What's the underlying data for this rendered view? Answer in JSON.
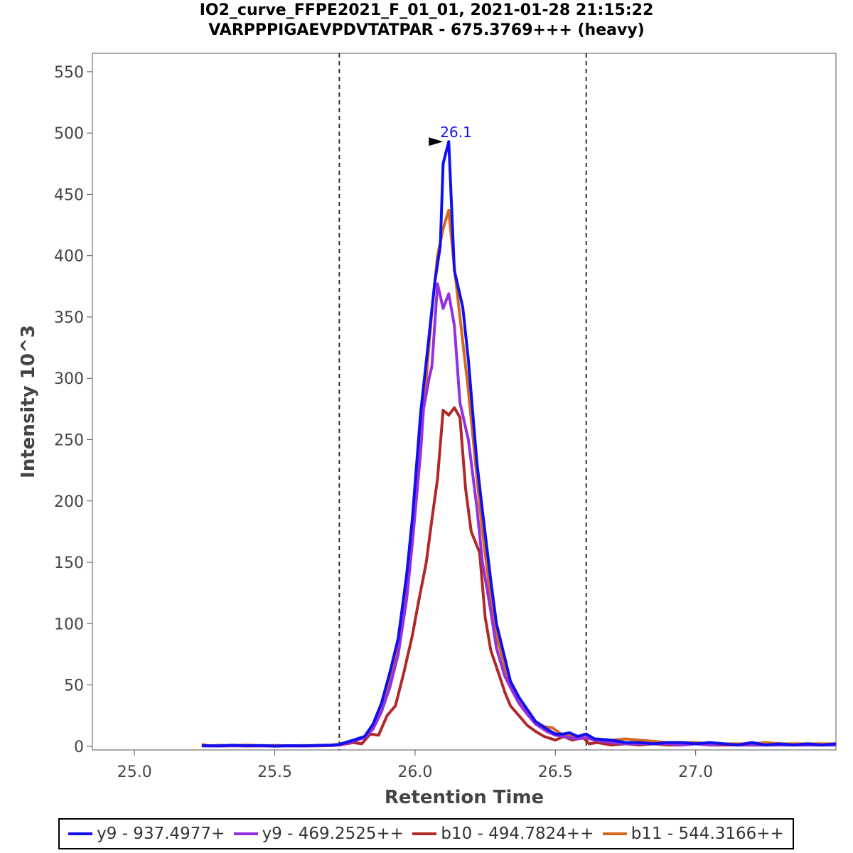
{
  "chart_data": {
    "type": "line",
    "title": "IO2_curve_FFPE2021_F_01_01, 2021-01-28 21:15:22",
    "subtitle": "VARPPPIGAEVPDVTATPAR - 675.3769+++ (heavy)",
    "xlabel": "Retention Time",
    "ylabel": "Intensity 10^3",
    "xlim": [
      24.85,
      27.5
    ],
    "ylim": [
      -3,
      565
    ],
    "xticks": [
      "25.0",
      "25.5",
      "26.0",
      "26.5",
      "27.0"
    ],
    "yticks": [
      "0",
      "50",
      "100",
      "150",
      "200",
      "250",
      "300",
      "350",
      "400",
      "450",
      "500",
      "550"
    ],
    "integration_bounds": [
      25.73,
      26.61
    ],
    "peak_annotation": {
      "label": "26.1",
      "x": 26.12,
      "y": 493
    },
    "series": [
      {
        "name": "y9 - 937.4977+",
        "color": "#1010ee",
        "points": [
          [
            25.24,
            0.5
          ],
          [
            25.3,
            0.3
          ],
          [
            25.35,
            0.8
          ],
          [
            25.4,
            0.4
          ],
          [
            25.45,
            0.6
          ],
          [
            25.5,
            0.2
          ],
          [
            25.55,
            0.5
          ],
          [
            25.6,
            0.3
          ],
          [
            25.65,
            0.7
          ],
          [
            25.7,
            0.9
          ],
          [
            25.73,
            1.5
          ],
          [
            25.78,
            5
          ],
          [
            25.82,
            8
          ],
          [
            25.85,
            18
          ],
          [
            25.88,
            35
          ],
          [
            25.91,
            60
          ],
          [
            25.94,
            88
          ],
          [
            25.97,
            140
          ],
          [
            25.99,
            185
          ],
          [
            26.02,
            272
          ],
          [
            26.05,
            335
          ],
          [
            26.07,
            378
          ],
          [
            26.09,
            408
          ],
          [
            26.1,
            475
          ],
          [
            26.12,
            493
          ],
          [
            26.14,
            388
          ],
          [
            26.17,
            358
          ],
          [
            26.19,
            315
          ],
          [
            26.22,
            232
          ],
          [
            26.24,
            192
          ],
          [
            26.27,
            135
          ],
          [
            26.29,
            100
          ],
          [
            26.32,
            72
          ],
          [
            26.34,
            53
          ],
          [
            26.37,
            40
          ],
          [
            26.4,
            30
          ],
          [
            26.43,
            20
          ],
          [
            26.47,
            14
          ],
          [
            26.5,
            10
          ],
          [
            26.53,
            10
          ],
          [
            26.55,
            11
          ],
          [
            26.58,
            8
          ],
          [
            26.61,
            10
          ],
          [
            26.64,
            6
          ],
          [
            26.7,
            5
          ],
          [
            26.75,
            3
          ],
          [
            26.8,
            3
          ],
          [
            26.85,
            2
          ],
          [
            26.9,
            3
          ],
          [
            26.95,
            3
          ],
          [
            27.0,
            2
          ],
          [
            27.05,
            3
          ],
          [
            27.1,
            2
          ],
          [
            27.15,
            1
          ],
          [
            27.2,
            3
          ],
          [
            27.25,
            1
          ],
          [
            27.3,
            2
          ],
          [
            27.35,
            1
          ],
          [
            27.4,
            2
          ],
          [
            27.45,
            1
          ],
          [
            27.5,
            2
          ]
        ]
      },
      {
        "name": "y9 - 469.2525++",
        "color": "#9430e0",
        "points": [
          [
            25.24,
            0.4
          ],
          [
            25.3,
            0.2
          ],
          [
            25.35,
            0.5
          ],
          [
            25.4,
            0.3
          ],
          [
            25.45,
            0.4
          ],
          [
            25.5,
            0.2
          ],
          [
            25.55,
            0.4
          ],
          [
            25.6,
            0.2
          ],
          [
            25.65,
            0.4
          ],
          [
            25.7,
            0.6
          ],
          [
            25.73,
            1
          ],
          [
            25.78,
            4
          ],
          [
            25.82,
            7
          ],
          [
            25.85,
            14
          ],
          [
            25.88,
            28
          ],
          [
            25.91,
            48
          ],
          [
            25.94,
            75
          ],
          [
            25.97,
            120
          ],
          [
            25.99,
            165
          ],
          [
            26.02,
            240
          ],
          [
            26.03,
            275
          ],
          [
            26.05,
            300
          ],
          [
            26.06,
            310
          ],
          [
            26.08,
            377
          ],
          [
            26.1,
            357
          ],
          [
            26.12,
            369
          ],
          [
            26.14,
            343
          ],
          [
            26.16,
            280
          ],
          [
            26.19,
            250
          ],
          [
            26.22,
            195
          ],
          [
            26.24,
            150
          ],
          [
            26.27,
            110
          ],
          [
            26.29,
            80
          ],
          [
            26.32,
            57
          ],
          [
            26.34,
            48
          ],
          [
            26.37,
            35
          ],
          [
            26.4,
            26
          ],
          [
            26.43,
            18
          ],
          [
            26.47,
            12
          ],
          [
            26.5,
            9
          ],
          [
            26.53,
            8
          ],
          [
            26.55,
            7
          ],
          [
            26.58,
            6
          ],
          [
            26.61,
            7
          ],
          [
            26.64,
            5
          ],
          [
            26.7,
            3
          ],
          [
            26.75,
            2
          ],
          [
            26.8,
            2
          ],
          [
            26.85,
            2
          ],
          [
            26.9,
            2
          ],
          [
            26.95,
            1
          ],
          [
            27.0,
            2
          ],
          [
            27.05,
            1
          ],
          [
            27.1,
            2
          ],
          [
            27.15,
            1
          ],
          [
            27.2,
            1
          ],
          [
            27.25,
            1
          ],
          [
            27.3,
            1
          ],
          [
            27.35,
            1
          ],
          [
            27.4,
            1
          ],
          [
            27.45,
            1
          ],
          [
            27.5,
            1
          ]
        ]
      },
      {
        "name": "b10 - 494.7824++",
        "color": "#b02828",
        "points": [
          [
            25.24,
            0.3
          ],
          [
            25.3,
            0.2
          ],
          [
            25.35,
            0.4
          ],
          [
            25.4,
            0.2
          ],
          [
            25.45,
            0.3
          ],
          [
            25.5,
            0.1
          ],
          [
            25.55,
            0.3
          ],
          [
            25.6,
            0.2
          ],
          [
            25.65,
            0.3
          ],
          [
            25.7,
            0.5
          ],
          [
            25.73,
            1
          ],
          [
            25.78,
            3
          ],
          [
            25.81,
            2
          ],
          [
            25.84,
            10
          ],
          [
            25.87,
            9
          ],
          [
            25.9,
            25
          ],
          [
            25.93,
            33
          ],
          [
            25.96,
            60
          ],
          [
            25.99,
            90
          ],
          [
            26.01,
            115
          ],
          [
            26.04,
            150
          ],
          [
            26.06,
            185
          ],
          [
            26.08,
            218
          ],
          [
            26.1,
            274
          ],
          [
            26.12,
            270
          ],
          [
            26.14,
            276
          ],
          [
            26.16,
            268
          ],
          [
            26.18,
            210
          ],
          [
            26.2,
            175
          ],
          [
            26.23,
            158
          ],
          [
            26.25,
            105
          ],
          [
            26.27,
            78
          ],
          [
            26.3,
            58
          ],
          [
            26.32,
            44
          ],
          [
            26.34,
            33
          ],
          [
            26.37,
            25
          ],
          [
            26.4,
            17
          ],
          [
            26.43,
            12
          ],
          [
            26.46,
            8
          ],
          [
            26.5,
            5
          ],
          [
            26.53,
            8
          ],
          [
            26.56,
            5
          ],
          [
            26.6,
            7
          ],
          [
            26.62,
            2
          ],
          [
            26.65,
            3
          ],
          [
            26.7,
            1
          ],
          [
            26.75,
            2
          ],
          [
            26.8,
            1
          ],
          [
            26.85,
            2
          ],
          [
            26.9,
            1
          ],
          [
            26.95,
            1
          ],
          [
            27.0,
            2
          ],
          [
            27.05,
            1
          ],
          [
            27.1,
            1
          ],
          [
            27.15,
            1
          ],
          [
            27.2,
            1
          ],
          [
            27.25,
            1
          ],
          [
            27.3,
            1
          ],
          [
            27.35,
            1
          ],
          [
            27.4,
            1
          ],
          [
            27.45,
            1
          ],
          [
            27.5,
            1
          ]
        ]
      },
      {
        "name": "b11 - 544.3166++",
        "color": "#d4691e",
        "points": [
          [
            25.24,
            1.5
          ],
          [
            25.27,
            0.3
          ],
          [
            25.3,
            0.8
          ],
          [
            25.35,
            0.4
          ],
          [
            25.4,
            1
          ],
          [
            25.45,
            0.5
          ],
          [
            25.5,
            0.7
          ],
          [
            25.55,
            0.3
          ],
          [
            25.6,
            0.6
          ],
          [
            25.65,
            0.5
          ],
          [
            25.7,
            1
          ],
          [
            25.73,
            1.5
          ],
          [
            25.78,
            4
          ],
          [
            25.82,
            8
          ],
          [
            25.85,
            15
          ],
          [
            25.88,
            33
          ],
          [
            25.91,
            55
          ],
          [
            25.94,
            85
          ],
          [
            25.97,
            130
          ],
          [
            25.99,
            175
          ],
          [
            26.02,
            250
          ],
          [
            26.04,
            300
          ],
          [
            26.06,
            355
          ],
          [
            26.08,
            400
          ],
          [
            26.1,
            422
          ],
          [
            26.12,
            437
          ],
          [
            26.14,
            390
          ],
          [
            26.17,
            330
          ],
          [
            26.19,
            290
          ],
          [
            26.22,
            220
          ],
          [
            26.24,
            175
          ],
          [
            26.27,
            120
          ],
          [
            26.29,
            90
          ],
          [
            26.32,
            65
          ],
          [
            26.34,
            50
          ],
          [
            26.37,
            38
          ],
          [
            26.4,
            28
          ],
          [
            26.43,
            20
          ],
          [
            26.46,
            16
          ],
          [
            26.49,
            15
          ],
          [
            26.52,
            10
          ],
          [
            26.55,
            9
          ],
          [
            26.58,
            7
          ],
          [
            26.61,
            6
          ],
          [
            26.65,
            6
          ],
          [
            26.7,
            5
          ],
          [
            26.75,
            6
          ],
          [
            26.8,
            5
          ],
          [
            26.85,
            4
          ],
          [
            26.9,
            3
          ],
          [
            26.95,
            3
          ],
          [
            27.0,
            3
          ],
          [
            27.05,
            2
          ],
          [
            27.1,
            2
          ],
          [
            27.15,
            2
          ],
          [
            27.2,
            2
          ],
          [
            27.25,
            3
          ],
          [
            27.3,
            2
          ],
          [
            27.35,
            2
          ],
          [
            27.4,
            2
          ],
          [
            27.45,
            2
          ],
          [
            27.5,
            2
          ]
        ]
      }
    ],
    "legend_position": "bottom"
  }
}
